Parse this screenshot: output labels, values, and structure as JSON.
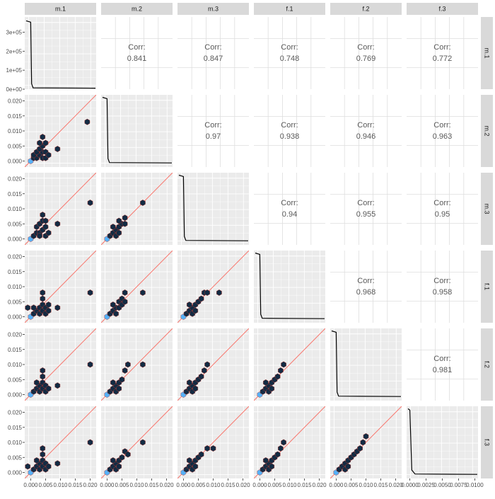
{
  "chart_data": {
    "type": "scatter",
    "subtype": "pairs-matrix",
    "variables": [
      "m.1",
      "m.2",
      "m.3",
      "f.1",
      "f.2",
      "f.3"
    ],
    "correlation_label": "Corr:",
    "correlations": [
      {
        "row": "m.1",
        "col": "m.2",
        "value": "0.841"
      },
      {
        "row": "m.1",
        "col": "m.3",
        "value": "0.847"
      },
      {
        "row": "m.1",
        "col": "f.1",
        "value": "0.748"
      },
      {
        "row": "m.1",
        "col": "f.2",
        "value": "0.769"
      },
      {
        "row": "m.1",
        "col": "f.3",
        "value": "0.772"
      },
      {
        "row": "m.2",
        "col": "m.3",
        "value": "0.97"
      },
      {
        "row": "m.2",
        "col": "f.1",
        "value": "0.938"
      },
      {
        "row": "m.2",
        "col": "f.2",
        "value": "0.946"
      },
      {
        "row": "m.2",
        "col": "f.3",
        "value": "0.963"
      },
      {
        "row": "m.3",
        "col": "f.1",
        "value": "0.94"
      },
      {
        "row": "m.3",
        "col": "f.2",
        "value": "0.955"
      },
      {
        "row": "m.3",
        "col": "f.3",
        "value": "0.95"
      },
      {
        "row": "f.1",
        "col": "f.2",
        "value": "0.968"
      },
      {
        "row": "f.1",
        "col": "f.3",
        "value": "0.958"
      },
      {
        "row": "f.2",
        "col": "f.3",
        "value": "0.981"
      }
    ],
    "y_ticks_first_row": [
      "0e+00",
      "1e+05",
      "2e+05",
      "3e+05"
    ],
    "y_ticks": [
      "0.000",
      "0.005",
      "0.010",
      "0.015",
      "0.020"
    ],
    "x_ticks": [
      "0.000",
      "0.005",
      "0.010",
      "0.015",
      "0.020"
    ],
    "x_ticks_last_col": [
      "0.0000",
      "0.0025",
      "0.0050",
      "0.0075",
      "0.0100"
    ],
    "diagonal_density": [
      {
        "var": "m.1",
        "peak": 360000,
        "ylim": [
          0,
          380000
        ],
        "xlim": [
          -0.002,
          0.022
        ]
      },
      {
        "var": "m.2",
        "peak": 0.0212,
        "ylim": [
          -0.001,
          0.022
        ],
        "xlim": [
          -0.002,
          0.022
        ]
      },
      {
        "var": "m.3",
        "peak": 0.0212,
        "ylim": [
          -0.001,
          0.022
        ],
        "xlim": [
          -0.002,
          0.022
        ]
      },
      {
        "var": "f.1",
        "peak": 0.0212,
        "ylim": [
          -0.001,
          0.022
        ],
        "xlim": [
          -0.002,
          0.022
        ]
      },
      {
        "var": "f.2",
        "peak": 0.0212,
        "ylim": [
          -0.001,
          0.022
        ],
        "xlim": [
          -0.002,
          0.022
        ]
      },
      {
        "var": "f.3",
        "peak": 0.0212,
        "ylim": [
          -0.001,
          0.022
        ],
        "xlim": [
          -0.0005,
          0.0105
        ]
      }
    ],
    "xlim": [
      -0.002,
      0.022
    ],
    "ylim": [
      -0.002,
      0.022
    ],
    "reference_line": "y = x",
    "hexbin_panels": {
      "m.2|m.1": [
        [
          0,
          0,
          9
        ],
        [
          0.001,
          0.001,
          2
        ],
        [
          0.002,
          0.001,
          1
        ],
        [
          0.001,
          0.002,
          1
        ],
        [
          0.003,
          0.002,
          1
        ],
        [
          0.002,
          0.003,
          1
        ],
        [
          0.004,
          0.003,
          1
        ],
        [
          0.003,
          0.004,
          1
        ],
        [
          0.005,
          0.003,
          1
        ],
        [
          0.004,
          0.005,
          1
        ],
        [
          0.003,
          0.006,
          1
        ],
        [
          0.004,
          0.008,
          1
        ],
        [
          0.005,
          0.006,
          1
        ],
        [
          0.009,
          0.004,
          1
        ],
        [
          0.004,
          0.001,
          1
        ],
        [
          0.005,
          0.001,
          1
        ],
        [
          0.006,
          0.002,
          1
        ],
        [
          0.019,
          0.013,
          1
        ]
      ],
      "m.3|m.1": [
        [
          0,
          0,
          9
        ],
        [
          0.001,
          0.001,
          2
        ],
        [
          0.002,
          0.002,
          1
        ],
        [
          0.003,
          0.002,
          1
        ],
        [
          0.002,
          0.004,
          1
        ],
        [
          0.004,
          0.003,
          1
        ],
        [
          0.003,
          0.005,
          1
        ],
        [
          0.005,
          0.004,
          1
        ],
        [
          0.004,
          0.006,
          1
        ],
        [
          0.004,
          0.008,
          1
        ],
        [
          0.005,
          0.006,
          1
        ],
        [
          0.003,
          0.001,
          1
        ],
        [
          0.005,
          0.001,
          1
        ],
        [
          0.006,
          0.002,
          1
        ],
        [
          0.009,
          0.005,
          1
        ],
        [
          0.02,
          0.012,
          1
        ]
      ],
      "m.3|m.2": [
        [
          0,
          0,
          9
        ],
        [
          0.001,
          0.001,
          2
        ],
        [
          0.002,
          0.002,
          1
        ],
        [
          0.003,
          0.003,
          1
        ],
        [
          0.002,
          0.004,
          1
        ],
        [
          0.004,
          0.004,
          1
        ],
        [
          0.005,
          0.005,
          1
        ],
        [
          0.004,
          0.006,
          1
        ],
        [
          0.006,
          0.005,
          1
        ],
        [
          0.003,
          0.001,
          1
        ],
        [
          0.004,
          0.002,
          1
        ],
        [
          0.006,
          0.007,
          1
        ],
        [
          0.012,
          0.012,
          1
        ]
      ],
      "f.1|m.1": [
        [
          0,
          0,
          9
        ],
        [
          0.001,
          0.001,
          2
        ],
        [
          0.002,
          0.002,
          1
        ],
        [
          0.001,
          0.003,
          1
        ],
        [
          0.003,
          0.001,
          1
        ],
        [
          0.003,
          0.003,
          1
        ],
        [
          0.004,
          0.002,
          1
        ],
        [
          0.004,
          0.004,
          1
        ],
        [
          0.005,
          0.003,
          1
        ],
        [
          0.004,
          0.006,
          1
        ],
        [
          0.004,
          0.008,
          1
        ],
        [
          0.005,
          0.001,
          1
        ],
        [
          0.006,
          0.002,
          1
        ],
        [
          0.006,
          0.004,
          1
        ],
        [
          0.009,
          0.003,
          1
        ],
        [
          -0.001,
          0.003,
          1
        ],
        [
          0.02,
          0.008,
          1
        ]
      ],
      "f.1|m.2": [
        [
          0,
          0,
          9
        ],
        [
          0.001,
          0.001,
          2
        ],
        [
          0.002,
          0.002,
          1
        ],
        [
          0.003,
          0.003,
          1
        ],
        [
          0.002,
          0.004,
          1
        ],
        [
          0.004,
          0.003,
          1
        ],
        [
          0.004,
          0.005,
          1
        ],
        [
          0.005,
          0.004,
          1
        ],
        [
          0.003,
          0.001,
          1
        ],
        [
          0.005,
          0.006,
          1
        ],
        [
          0.006,
          0.008,
          1
        ],
        [
          0.006,
          0.005,
          1
        ],
        [
          0.012,
          0.008,
          1
        ]
      ],
      "f.1|m.3": [
        [
          0,
          0,
          9
        ],
        [
          0.001,
          0.001,
          2
        ],
        [
          0.002,
          0.002,
          1
        ],
        [
          0.003,
          0.003,
          1
        ],
        [
          0.002,
          0.004,
          1
        ],
        [
          0.004,
          0.004,
          1
        ],
        [
          0.005,
          0.005,
          1
        ],
        [
          0.006,
          0.006,
          1
        ],
        [
          0.003,
          0.001,
          1
        ],
        [
          0.004,
          0.002,
          1
        ],
        [
          0.007,
          0.008,
          1
        ],
        [
          0.008,
          0.008,
          1
        ],
        [
          0.012,
          0.008,
          1
        ]
      ],
      "f.2|m.1": [
        [
          0,
          0,
          9
        ],
        [
          0.001,
          0.001,
          2
        ],
        [
          0.002,
          0.002,
          1
        ],
        [
          0.003,
          0.001,
          1
        ],
        [
          0.003,
          0.003,
          1
        ],
        [
          0.004,
          0.002,
          1
        ],
        [
          0.002,
          0.004,
          1
        ],
        [
          0.004,
          0.004,
          1
        ],
        [
          0.005,
          0.003,
          1
        ],
        [
          0.004,
          0.006,
          1
        ],
        [
          0.004,
          0.008,
          1
        ],
        [
          0.005,
          0.001,
          1
        ],
        [
          0.006,
          0.002,
          1
        ],
        [
          0.009,
          0.003,
          1
        ],
        [
          0.02,
          0.01,
          1
        ]
      ],
      "f.2|m.2": [
        [
          0,
          0,
          9
        ],
        [
          0.001,
          0.001,
          2
        ],
        [
          0.002,
          0.002,
          1
        ],
        [
          0.003,
          0.003,
          1
        ],
        [
          0.002,
          0.004,
          1
        ],
        [
          0.004,
          0.004,
          1
        ],
        [
          0.005,
          0.005,
          1
        ],
        [
          0.003,
          0.001,
          1
        ],
        [
          0.004,
          0.002,
          1
        ],
        [
          0.006,
          0.008,
          1
        ],
        [
          0.007,
          0.01,
          1
        ],
        [
          0.012,
          0.01,
          1
        ]
      ],
      "f.2|m.3": [
        [
          0,
          0,
          9
        ],
        [
          0.001,
          0.001,
          2
        ],
        [
          0.002,
          0.002,
          1
        ],
        [
          0.003,
          0.003,
          1
        ],
        [
          0.002,
          0.004,
          1
        ],
        [
          0.004,
          0.004,
          1
        ],
        [
          0.005,
          0.005,
          1
        ],
        [
          0.006,
          0.006,
          1
        ],
        [
          0.003,
          0.001,
          1
        ],
        [
          0.004,
          0.002,
          1
        ],
        [
          0.007,
          0.008,
          1
        ],
        [
          0.008,
          0.01,
          1
        ]
      ],
      "f.2|f.1": [
        [
          0,
          0,
          9
        ],
        [
          0.001,
          0.001,
          2
        ],
        [
          0.002,
          0.002,
          1
        ],
        [
          0.003,
          0.003,
          1
        ],
        [
          0.002,
          0.004,
          1
        ],
        [
          0.004,
          0.004,
          1
        ],
        [
          0.005,
          0.005,
          1
        ],
        [
          0.006,
          0.006,
          1
        ],
        [
          0.003,
          0.001,
          1
        ],
        [
          0.004,
          0.002,
          1
        ],
        [
          0.007,
          0.008,
          1
        ],
        [
          0.008,
          0.01,
          1
        ]
      ],
      "f.3|m.1": [
        [
          0,
          0,
          9
        ],
        [
          0.001,
          0.001,
          2
        ],
        [
          0.002,
          0.002,
          1
        ],
        [
          0.003,
          0.001,
          1
        ],
        [
          0.003,
          0.003,
          1
        ],
        [
          0.004,
          0.002,
          1
        ],
        [
          0.002,
          0.004,
          1
        ],
        [
          0.004,
          0.004,
          1
        ],
        [
          0.005,
          0.003,
          1
        ],
        [
          0.004,
          0.006,
          1
        ],
        [
          0.004,
          0.008,
          1
        ],
        [
          0.005,
          0.001,
          1
        ],
        [
          0.006,
          0.002,
          1
        ],
        [
          0.009,
          0.003,
          1
        ],
        [
          -0.001,
          0.002,
          1
        ],
        [
          0.02,
          0.01,
          1
        ]
      ],
      "f.3|m.2": [
        [
          0,
          0,
          9
        ],
        [
          0.001,
          0.001,
          2
        ],
        [
          0.002,
          0.002,
          1
        ],
        [
          0.003,
          0.003,
          1
        ],
        [
          0.002,
          0.004,
          1
        ],
        [
          0.004,
          0.004,
          1
        ],
        [
          0.005,
          0.005,
          1
        ],
        [
          0.003,
          0.001,
          1
        ],
        [
          0.004,
          0.002,
          1
        ],
        [
          0.006,
          0.007,
          1
        ],
        [
          0.007,
          0.006,
          1
        ],
        [
          0.012,
          0.01,
          1
        ]
      ],
      "f.3|m.3": [
        [
          0,
          0,
          9
        ],
        [
          0.001,
          0.001,
          2
        ],
        [
          0.002,
          0.002,
          1
        ],
        [
          0.003,
          0.003,
          1
        ],
        [
          0.002,
          0.004,
          1
        ],
        [
          0.004,
          0.004,
          1
        ],
        [
          0.005,
          0.005,
          1
        ],
        [
          0.003,
          0.001,
          1
        ],
        [
          0.004,
          0.002,
          1
        ],
        [
          0.006,
          0.006,
          1
        ],
        [
          0.008,
          0.008,
          1
        ],
        [
          0.01,
          0.008,
          1
        ]
      ],
      "f.3|f.1": [
        [
          0,
          0,
          9
        ],
        [
          0.001,
          0.001,
          2
        ],
        [
          0.002,
          0.002,
          1
        ],
        [
          0.003,
          0.003,
          1
        ],
        [
          0.002,
          0.004,
          1
        ],
        [
          0.004,
          0.004,
          1
        ],
        [
          0.005,
          0.005,
          1
        ],
        [
          0.006,
          0.006,
          1
        ],
        [
          0.003,
          0.001,
          1
        ],
        [
          0.004,
          0.002,
          1
        ],
        [
          0.007,
          0.008,
          1
        ],
        [
          0.008,
          0.01,
          1
        ]
      ],
      "f.3|f.2": [
        [
          0,
          0,
          9
        ],
        [
          0.001,
          0.001,
          2
        ],
        [
          0.002,
          0.002,
          1
        ],
        [
          0.003,
          0.003,
          1
        ],
        [
          0.004,
          0.004,
          1
        ],
        [
          0.005,
          0.005,
          1
        ],
        [
          0.006,
          0.006,
          1
        ],
        [
          0.007,
          0.007,
          1
        ],
        [
          0.003,
          0.001,
          1
        ],
        [
          0.004,
          0.002,
          1
        ],
        [
          0.008,
          0.008,
          1
        ],
        [
          0.009,
          0.01,
          1
        ],
        [
          0.01,
          0.012,
          1
        ]
      ]
    },
    "colors": {
      "panel_bg": "#ebebeb",
      "grid": "#ffffff",
      "strip_bg": "#d9d9d9",
      "hex_dark": "#132b43",
      "hex_light": "#56b1f7",
      "hex_outline": "#c0392b",
      "ref_line": "#f8766d",
      "density_line": "#000000",
      "corr_panel_bg": "#ffffff",
      "corr_grid": "#dedede"
    }
  }
}
